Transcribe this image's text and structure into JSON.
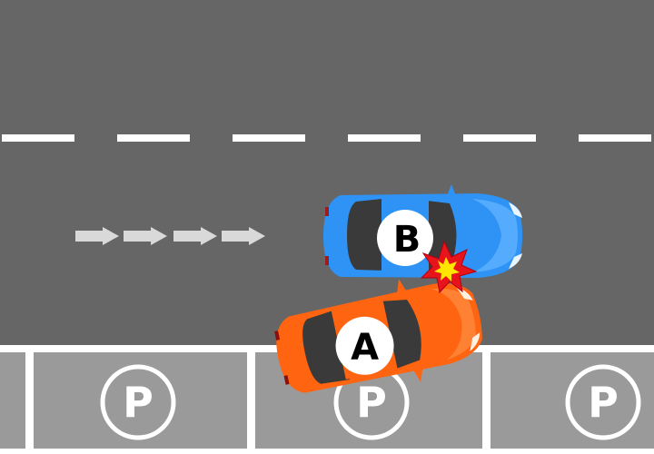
{
  "scene": {
    "road_color": "#666666",
    "lane_marking_color": "#ffffff",
    "parking_area_color": "#9a9a9a",
    "arrow_color": "#d9d9d9"
  },
  "vehicles": [
    {
      "label": "A",
      "body_color": "#ff6410",
      "role": "parking car"
    },
    {
      "label": "B",
      "body_color": "#2f93f5",
      "role": "through-lane car"
    }
  ],
  "parking_spaces": [
    {
      "sign": "P"
    },
    {
      "sign": "P"
    },
    {
      "sign": "P"
    }
  ],
  "collision": {
    "icon": "explosion-icon",
    "outer_color": "#e8141c",
    "inner_color": "#ffe600"
  }
}
